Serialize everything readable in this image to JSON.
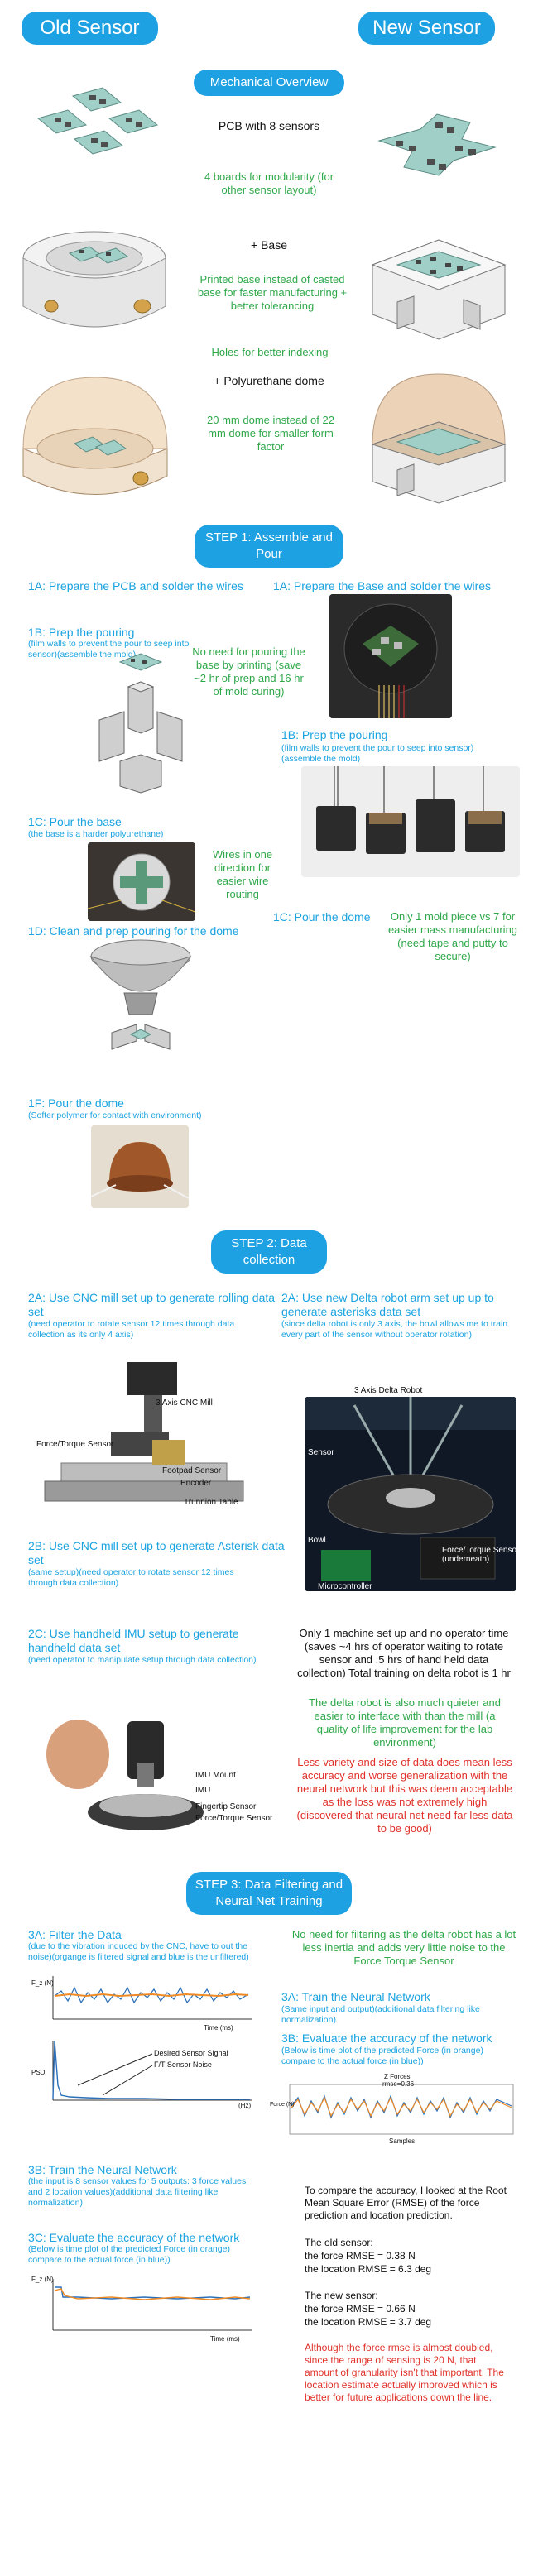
{
  "header": {
    "old_label": "Old Sensor",
    "new_label": "New Sensor"
  },
  "mechanical": {
    "title": "Mechanical Overview",
    "pcb": "PCB with 8 sensors",
    "modularity": "4 boards for modularity (for other sensor layout)",
    "base": "+ Base",
    "printed_base": "Printed base instead of casted base for faster manufacturing + better tolerancing",
    "holes": "Holes for better indexing",
    "dome": "+ Polyurethane dome",
    "dome_size": "20 mm dome instead of 22 mm dome for smaller form factor"
  },
  "step1": {
    "title": "STEP 1: Assemble and Pour",
    "old_1a": "1A: Prepare the PCB and solder the wires",
    "new_1a": "1A: Prepare the Base and solder the wires",
    "old_1b": "1B: Prep the pouring",
    "old_1b_sub": "(film walls to prevent the pour to seep into sensor)(assemble the mold)",
    "no_pour": "No need for pouring the base by printing (save ~2 hr of prep and 16 hr of mold curing)",
    "new_1b": "1B: Prep the pouring",
    "new_1b_sub": "(film walls to prevent the pour to seep into sensor)(assemble the mold)",
    "old_1c": "1C: Pour the base",
    "old_1c_sub": "(the base is a harder polyurethane)",
    "wires": "Wires in one direction for easier wire routing",
    "new_1c": "1C: Pour the dome",
    "one_mold": "Only 1 mold piece vs 7 for easier mass manufacturing (need tape and putty to secure)",
    "old_1d": "1D: Clean and prep pouring for the dome",
    "old_1f": "1F: Pour the dome",
    "old_1f_sub": "(Softer polymer for contact with environment)"
  },
  "step2": {
    "title": "STEP 2: Data collection",
    "old_2a": "2A: Use CNC mill set up to generate rolling data set",
    "old_2a_sub": "(need operator to rotate sensor 12 times through data collection as its only 4 axis)",
    "new_2a": "2A: Use new Delta robot arm set up up to generate asterisks data set",
    "new_2a_sub": "(since delta robot is only 3 axis, the bowl allows me to train every part of the sensor without operator rotation)",
    "cnc_labels": [
      "3 Axis CNC Mill",
      "Force/Torque Sensor",
      "Footpad Sensor",
      "Encoder",
      "Trunnion Table"
    ],
    "delta_labels": [
      "3 Axis Delta Robot",
      "Sensor",
      "Bowl",
      "Force/Torque Sensor (underneath)",
      "Microcontroller"
    ],
    "old_2b": "2B: Use CNC mill set up to generate Asterisk data set",
    "old_2b_sub": "(same setup)(need operator to rotate sensor 12 times through data collection)",
    "old_2c": "2C: Use handheld IMU setup to generate handheld data set",
    "old_2c_sub": "(need operator to manipulate setup through data collection)",
    "one_machine": "Only 1 machine set up and no operator time (saves ~4 hrs of operator waiting to rotate sensor and .5 hrs of hand held data collection) Total training on delta robot is 1 hr",
    "quieter": "The delta robot is also much quieter and easier to interface with than the mill (a quality of life improvement for the lab environment)",
    "less_variety": "Less variety and size of data does mean less accuracy and worse generalization with the neural network but this was deem acceptable as the loss was not extremely high (discovered that neural net need far less data to be good)",
    "imu_labels": [
      "IMU Mount",
      "IMU",
      "Fingertip Sensor",
      "Force/Torque Sensor"
    ]
  },
  "step3": {
    "title": "STEP 3: Data Filtering and Neural Net Training",
    "old_3a": "3A: Filter the Data",
    "old_3a_sub": "(due to the vibration induced by the CNC, have to out the noise)(organge is filtered signal and blue is the unfiltered)",
    "no_filter": "No need for filtering as the delta robot has a lot less inertia and adds very little noise to the Force Torque Sensor",
    "new_3a": "3A: Train the Neural Network",
    "new_3a_sub": "(Same input and output)(additional data filtering like normalization)",
    "new_3b": "3B: Evaluate the accuracy of the network",
    "new_3b_sub": "(Below is time plot of the predicted Force (in orange) compare to the actual force (in blue))",
    "old_3b": "3B: Train the Neural Network",
    "old_3b_sub": "(the input is 8 sensor values for 5 outputs: 3 force values and 2 location values)(additional data filtering like normalization)",
    "old_3c": "3C: Evaluate the accuracy of the network",
    "old_3c_sub": "(Below is time plot of the predicted Force (in orange) compare to the actual force (in blue))",
    "compare": "To compare the accuracy, I looked at the Root Mean Square Error (RMSE) of the force prediction and location prediction.",
    "old_sensor_head": "The old sensor:",
    "old_force": "the force RMSE =  0.38 N",
    "old_loc": "the location RMSE = 6.3 deg",
    "new_sensor_head": "The new sensor:",
    "new_force": "the force RMSE =  0.66 N",
    "new_loc": "the location RMSE = 3.7 deg",
    "conclusion": "Although the force rmse is almost doubled, since the range of sensing is 20 N, that amount of granularity isn't that important. The location estimate actually improved which is better for future applications down the line.",
    "plot_labels": {
      "fz": "F_z (N)",
      "time_ms": "Time (ms)",
      "psd": "PSD",
      "hz": "(Hz)",
      "desired": "Desired Sensor Signal",
      "ft_noise": "F/T Sensor Noise",
      "zforce": "Z Forces",
      "rmse": "rmse=0.36",
      "samples": "Samples",
      "force_n": "Force (N)",
      "time_ms2": "Time (ms)"
    }
  }
}
